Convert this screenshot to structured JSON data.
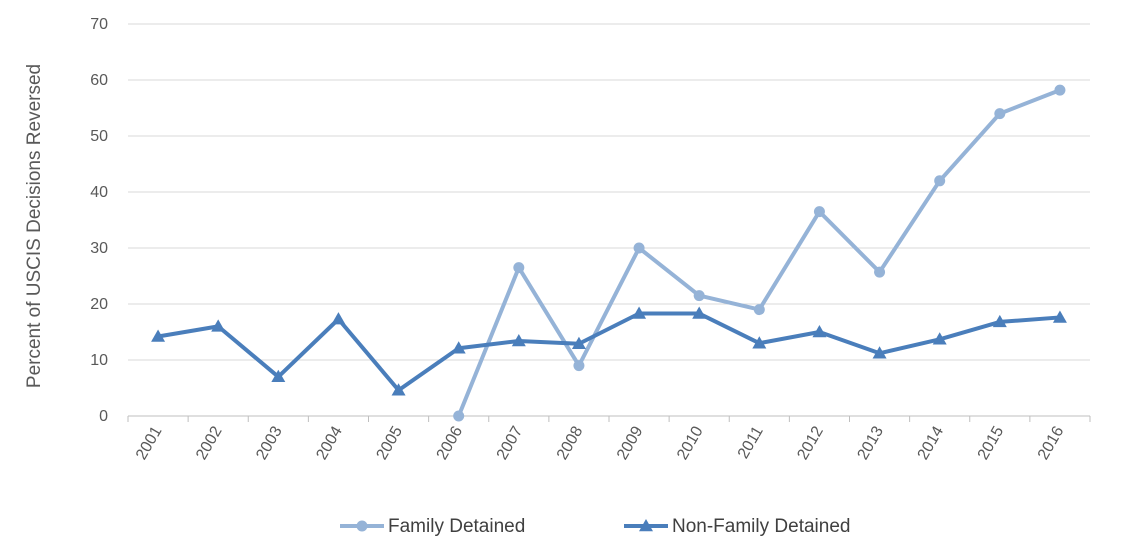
{
  "chart_data": {
    "type": "line",
    "title": "",
    "xlabel": "",
    "ylabel": "Percent of USCIS Decisions Reversed",
    "ylim": [
      0,
      70
    ],
    "yticks": [
      "0",
      "10",
      "20",
      "30",
      "40",
      "50",
      "60",
      "70"
    ],
    "categories": [
      "2001",
      "2002",
      "2003",
      "2004",
      "2005",
      "2006",
      "2007",
      "2008",
      "2009",
      "2010",
      "2011",
      "2012",
      "2013",
      "2014",
      "2015",
      "2016"
    ],
    "grid": "horizontal",
    "legend_position": "bottom",
    "series": [
      {
        "name": "Family Detained",
        "color": "#95b3d7",
        "marker": "circle",
        "values": [
          null,
          null,
          null,
          null,
          null,
          0,
          26.5,
          9,
          30,
          21.5,
          19,
          36.5,
          25.7,
          42,
          54,
          58.2
        ]
      },
      {
        "name": "Non-Family Detained",
        "color": "#4a7ebb",
        "marker": "triangle",
        "values": [
          14.2,
          16,
          7,
          17.3,
          4.6,
          12.1,
          13.4,
          12.9,
          18.3,
          18.3,
          13,
          15,
          11.2,
          13.7,
          16.8,
          17.6
        ]
      }
    ]
  }
}
